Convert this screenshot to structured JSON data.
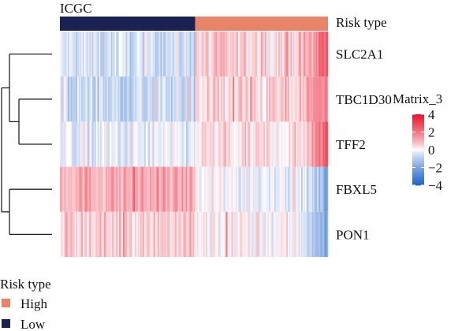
{
  "chart_data": {
    "type": "heatmap",
    "title": "ICGC",
    "annotation": {
      "name": "Risk type",
      "levels": [
        {
          "label": "High",
          "color": "#E8846A"
        },
        {
          "label": "Low",
          "color": "#1B2150"
        }
      ],
      "samples_order": [
        "Low",
        "High"
      ],
      "low_fraction": 0.505
    },
    "rows": [
      "SLC2A1",
      "TBC1D30",
      "TFF2",
      "FBXL5",
      "PON1"
    ],
    "n_samples": 200,
    "color_scale": {
      "name": "Matrix_3",
      "min": -4,
      "max": 4,
      "ticks": [
        4,
        2,
        0,
        -2,
        -4
      ],
      "colors": {
        "low": "#1F64C8",
        "mid": "#FFFFFF",
        "high": "#E8132B"
      }
    },
    "row_profiles": {
      "SLC2A1": {
        "low_mean": -0.55,
        "high_mean": 0.55,
        "end_boost": 2.2
      },
      "TBC1D30": {
        "low_mean": -0.7,
        "high_mean": 0.5,
        "end_boost": 2.0
      },
      "TFF2": {
        "low_mean": -0.35,
        "high_mean": 0.25,
        "end_boost": 2.8
      },
      "FBXL5": {
        "low_mean": 1.1,
        "high_mean": -0.1,
        "end_boost": -2.0
      },
      "PON1": {
        "low_mean": 0.65,
        "high_mean": 0.05,
        "end_boost": -2.4
      }
    },
    "dendrogram": "((SLC2A1,(TBC1D30,TFF2)),(FBXL5,PON1))"
  },
  "labels": {
    "top_title": "ICGC",
    "annotation_row_label": "Risk type",
    "legend_title": "Risk type",
    "legend_high": "High",
    "legend_low": "Low",
    "scale_title": "Matrix_3",
    "scale_ticks": [
      "4",
      "2",
      "0",
      "−2",
      "−4"
    ]
  }
}
